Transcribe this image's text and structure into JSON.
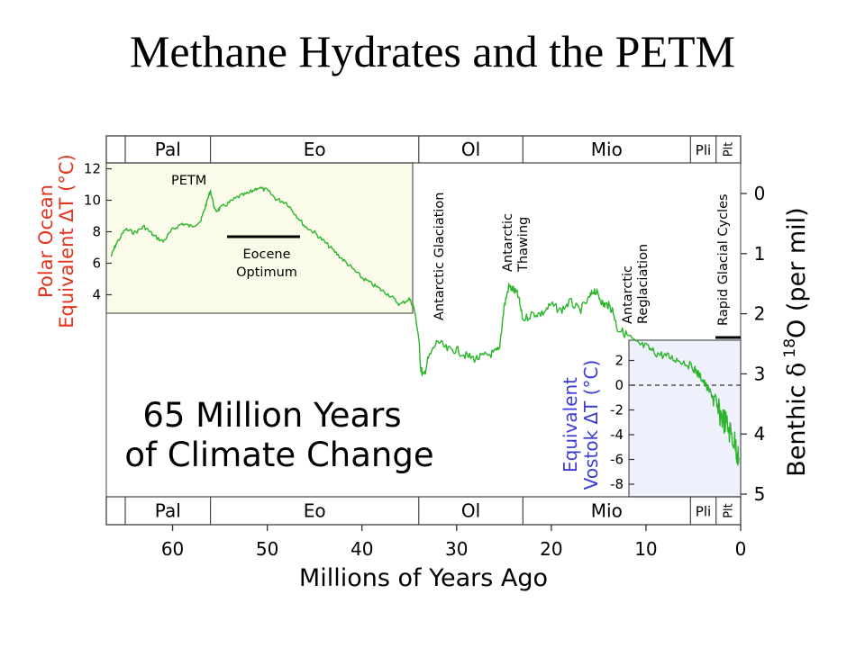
{
  "slide": {
    "title": "Methane Hydrates and the PETM"
  },
  "colors": {
    "series": "#2bb52b",
    "polar_label": "#e0341c",
    "vostok_label": "#3b3bd8",
    "top_inset_bg": "#fbfbea",
    "bottom_inset_bg": "#eef0fb"
  },
  "chart_data": {
    "type": "line",
    "title": "65 Million Years of Climate Change",
    "title_lines": [
      "65 Million Years",
      "of Climate Change"
    ],
    "xlabel": "Millions of Years Ago",
    "ylabel_right": "Benthic δ 18O (per mil)",
    "ylabel_right_parts": {
      "pre": "Benthic ",
      "delta": "δ",
      "sup": "18",
      "post": "O (per mil)"
    },
    "xlim": [
      67,
      0
    ],
    "ylim_right": [
      5,
      -0.3
    ],
    "right_axis_inverted": true,
    "x_ticks": [
      60,
      50,
      40,
      30,
      20,
      10,
      0
    ],
    "y_right_ticks": [
      0,
      1,
      2,
      3,
      4,
      5
    ],
    "epochs": [
      {
        "label": "Pal",
        "start": 65,
        "end": 56
      },
      {
        "label": "Eo",
        "start": 56,
        "end": 34
      },
      {
        "label": "Ol",
        "start": 34,
        "end": 23
      },
      {
        "label": "Mio",
        "start": 23,
        "end": 5.3
      },
      {
        "label": "Pli",
        "start": 5.3,
        "end": 2.6
      },
      {
        "label": "Plt",
        "start": 2.6,
        "end": 0
      }
    ],
    "polar_axis": {
      "label_line1": "Polar Ocean",
      "label_line2": "Equivalent  ΔT (°C)",
      "ticks": [
        "12",
        "10",
        "8",
        "6",
        "4"
      ],
      "tick_values": [
        12,
        10,
        8,
        6,
        4
      ]
    },
    "vostok_axis": {
      "label_line1": "Equivalent",
      "label_line2": "Vostok  ΔT (°C)",
      "ticks": [
        "2",
        "0",
        "-2",
        "-4",
        "-6",
        "-8"
      ],
      "tick_values": [
        2,
        0,
        -2,
        -4,
        -6,
        -8
      ]
    },
    "annotations": {
      "petm": "PETM",
      "eocene_optimum": [
        "Eocene",
        "Optimum"
      ],
      "antarctic_glaciation": "Antarctic Glaciation",
      "antarctic_thawing": [
        "Antarctic",
        "Thawing"
      ],
      "antarctic_reglaciation": [
        "Antarctic",
        "Reglaciation"
      ],
      "rapid_glacial_cycles": "Rapid Glacial Cycles"
    },
    "series": [
      {
        "x": [
          66.5,
          66,
          65,
          64,
          63,
          62,
          61,
          60,
          59,
          58,
          57,
          56.5,
          56,
          55.5,
          55,
          54,
          53,
          52,
          51,
          50,
          49,
          48,
          47,
          46,
          45,
          44,
          43,
          42,
          41,
          40,
          39,
          38,
          37,
          36,
          35,
          34.5,
          34,
          33.8,
          33.5,
          33,
          32,
          31,
          30,
          29,
          28,
          27,
          26,
          25.5,
          25,
          24.5,
          24,
          23.5,
          23,
          22,
          21,
          20,
          19,
          18,
          17,
          16,
          15.5,
          15,
          14.5,
          14,
          13.5,
          13,
          12,
          11,
          10,
          9,
          8,
          7,
          6,
          5,
          4.5,
          4,
          3.5,
          3,
          2.5,
          2,
          1.5,
          1,
          0.5,
          0.2
        ],
        "values": [
          1.05,
          0.85,
          0.6,
          0.65,
          0.55,
          0.7,
          0.8,
          0.6,
          0.5,
          0.55,
          0.45,
          0.2,
          -0.05,
          0.3,
          0.25,
          0.15,
          0.05,
          0.0,
          -0.1,
          -0.05,
          0.1,
          0.15,
          0.35,
          0.55,
          0.65,
          0.8,
          0.95,
          1.1,
          1.25,
          1.4,
          1.5,
          1.6,
          1.7,
          1.85,
          1.75,
          1.9,
          2.4,
          2.9,
          3.05,
          2.75,
          2.45,
          2.6,
          2.6,
          2.7,
          2.75,
          2.7,
          2.65,
          2.6,
          1.9,
          1.55,
          1.6,
          1.7,
          2.1,
          2.0,
          2.0,
          1.85,
          1.95,
          1.8,
          1.95,
          1.75,
          1.6,
          1.7,
          1.85,
          1.85,
          1.95,
          2.25,
          2.35,
          2.5,
          2.55,
          2.65,
          2.7,
          2.75,
          2.8,
          2.9,
          3.0,
          3.1,
          3.25,
          3.35,
          3.6,
          3.7,
          3.85,
          4.0,
          4.2,
          4.4
        ]
      }
    ]
  }
}
